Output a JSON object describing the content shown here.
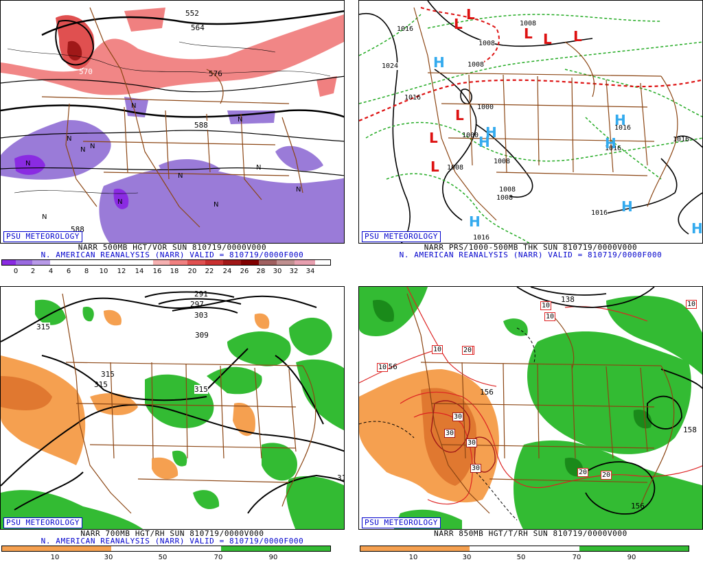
{
  "panels": [
    {
      "id": "p1",
      "logo": "PSU METEOROLOGY",
      "caption_line1": "NARR 500MB HGT/VOR SUN 810719/0000V000",
      "caption_line2": "N. AMERICAN REANALYSIS (NARR) VALID = 810719/0000F000",
      "colorbar_labels": [
        "0",
        "2",
        "4",
        "6",
        "8",
        "10",
        "12",
        "14",
        "16",
        "18",
        "20",
        "22",
        "24",
        "26",
        "28",
        "30",
        "32",
        "34"
      ],
      "contour_labels": [
        "552",
        "564",
        "570",
        "576",
        "588",
        "588"
      ],
      "vort_labels": [
        "N",
        "N",
        "N",
        "N",
        "N",
        "N",
        "N",
        "N",
        "N",
        "N",
        "N",
        "N"
      ]
    },
    {
      "id": "p2",
      "logo": "PSU METEOROLOGY",
      "caption_line1": "NARR PRS/1000-500MB THK SUN 810719/0000V000",
      "caption_line2": "N. AMERICAN REANALYSIS (NARR) VALID = 810719/0000F000",
      "isobar_labels": [
        "1024",
        "1016",
        "1008",
        "1008",
        "1008",
        "1000",
        "1000",
        "1008",
        "1008",
        "1008",
        "1016",
        "1016",
        "1016",
        "1016",
        "1016",
        "1016",
        "1008"
      ],
      "high_symbol": "H",
      "low_symbol": "L"
    },
    {
      "id": "p3",
      "logo": "PSU METEOROLOGY",
      "caption_line1": "NARR 700MB HGT/RH SUN 810719/0000V000",
      "caption_line2": "N. AMERICAN REANALYSIS (NARR) VALID = 810719/0000F000",
      "colorbar_labels": [
        "10",
        "30",
        "50",
        "70",
        "90"
      ],
      "contour_labels": [
        "297",
        "291",
        "303",
        "309",
        "315",
        "315",
        "315",
        "315",
        "31"
      ]
    },
    {
      "id": "p4",
      "logo": "PSU METEOROLOGY",
      "caption_line1": "NARR 850MB HGT/T/RH SUN 810719/0000V000",
      "caption_line2": "",
      "colorbar_labels": [
        "10",
        "30",
        "50",
        "70",
        "90"
      ],
      "contour_labels": [
        "138",
        "156",
        "156",
        "158",
        "156"
      ],
      "temp_labels": [
        "10",
        "10",
        "10",
        "20",
        "30",
        "30",
        "30",
        "30",
        "20",
        "20",
        "10",
        "20",
        "10"
      ]
    }
  ],
  "colors": {
    "purple_dark": "#8a2be2",
    "purple": "#9a7bd8",
    "red_light": "#f08080",
    "red": "#e05050",
    "red_dark": "#a01818",
    "green": "#33bb33",
    "green_dark": "#1a8a1a",
    "orange": "#f5a050",
    "orange_dark": "#e07830",
    "border_brown": "#8b4513",
    "logo_blue": "#0000cc",
    "cyan_h": "#33aaee",
    "red_l": "#dd1111"
  }
}
